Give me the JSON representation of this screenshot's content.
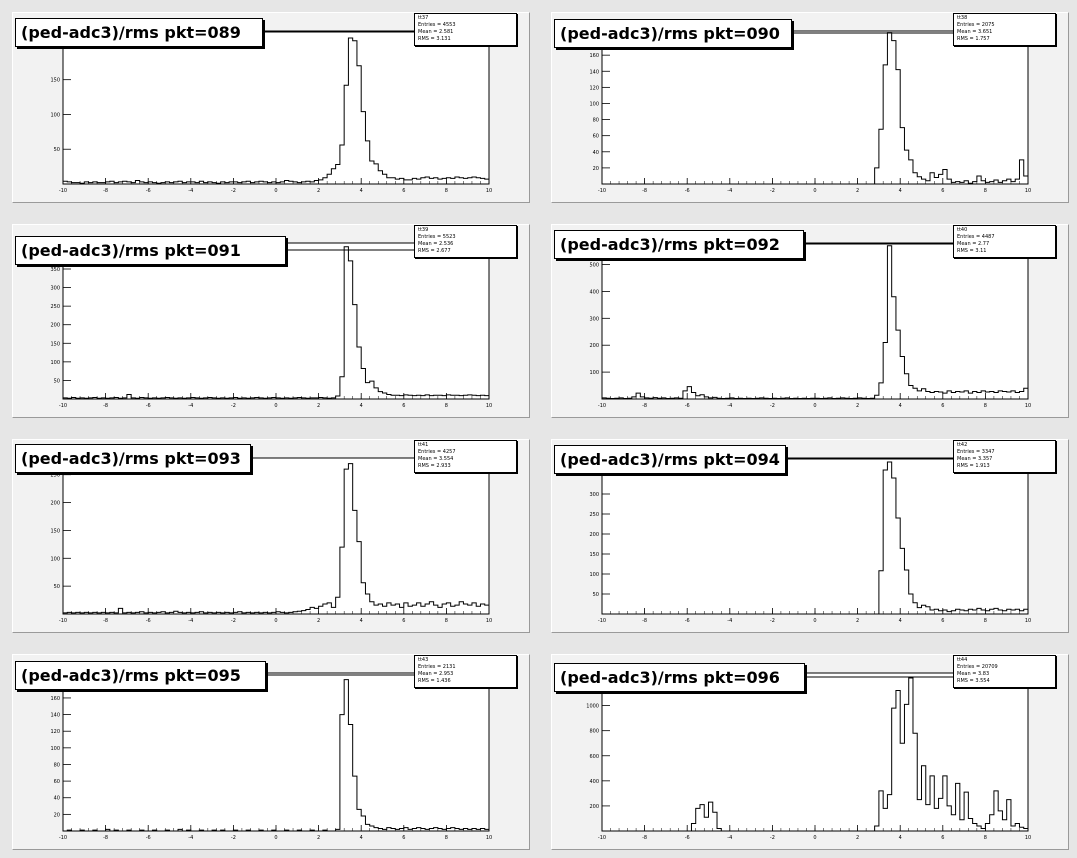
{
  "chart_data": [
    {
      "type": "bar",
      "title": "(ped-adc3)/rms pkt=089",
      "stats": {
        "name": "tt37",
        "entries": "Entries = 4553",
        "mean": "Mean = 2.581",
        "rms": "RMS = 3.131"
      },
      "xlim": [
        -10,
        10
      ],
      "ylim": [
        0,
        220
      ],
      "x_ticks": [
        "-10",
        "-8",
        "-6",
        "-4",
        "-2",
        "0",
        "2",
        "4",
        "6",
        "8",
        "10"
      ],
      "y_ticks": [
        {
          "value": 50,
          "label": "50"
        },
        {
          "value": 100,
          "label": "100"
        },
        {
          "value": 150,
          "label": "150"
        },
        {
          "value": 200,
          "label": "200"
        }
      ],
      "bin_width": 0.2,
      "values": [
        4,
        3,
        2,
        2,
        1,
        3,
        2,
        3,
        2,
        2,
        3,
        4,
        2,
        3,
        4,
        3,
        2,
        5,
        3,
        2,
        3,
        2,
        1,
        2,
        3,
        2,
        3,
        4,
        2,
        3,
        3,
        2,
        4,
        2,
        3,
        2,
        1,
        3,
        2,
        3,
        3,
        2,
        3,
        4,
        2,
        3,
        4,
        3,
        2,
        3,
        2,
        3,
        5,
        4,
        3,
        2,
        3,
        4,
        3,
        5,
        6,
        9,
        14,
        22,
        28,
        56,
        142,
        210,
        206,
        170,
        104,
        62,
        33,
        29,
        19,
        14,
        9,
        9,
        7,
        8,
        6,
        6,
        8,
        7,
        9,
        10,
        8,
        9,
        7,
        8,
        9,
        8,
        10,
        9,
        8,
        9,
        10,
        9,
        8,
        7
      ]
    },
    {
      "type": "bar",
      "title": "(ped-adc3)/rms pkt=090",
      "stats": {
        "name": "tt38",
        "entries": "Entries = 2075",
        "mean": "Mean = 3.651",
        "rms": "RMS = 1.757"
      },
      "xlim": [
        -10,
        10
      ],
      "ylim": [
        0,
        190
      ],
      "x_ticks": [
        "-10",
        "-8",
        "-6",
        "-4",
        "-2",
        "0",
        "2",
        "4",
        "6",
        "8",
        "10"
      ],
      "y_ticks": [
        {
          "value": 20,
          "label": "20"
        },
        {
          "value": 40,
          "label": "40"
        },
        {
          "value": 60,
          "label": "60"
        },
        {
          "value": 80,
          "label": "80"
        },
        {
          "value": 100,
          "label": "100"
        },
        {
          "value": 120,
          "label": "120"
        },
        {
          "value": 140,
          "label": "140"
        },
        {
          "value": 160,
          "label": "160"
        },
        {
          "value": 180,
          "label": "180"
        }
      ],
      "bin_width": 0.2,
      "values": [
        0,
        0,
        0,
        0,
        0,
        0,
        0,
        0,
        0,
        0,
        0,
        0,
        0,
        0,
        0,
        0,
        0,
        0,
        0,
        0,
        0,
        0,
        0,
        0,
        0,
        0,
        0,
        0,
        0,
        0,
        0,
        0,
        0,
        0,
        0,
        0,
        0,
        0,
        0,
        0,
        0,
        0,
        0,
        0,
        0,
        0,
        0,
        0,
        0,
        0,
        0,
        0,
        0,
        0,
        0,
        0,
        0,
        0,
        0,
        0,
        0,
        0,
        0,
        0,
        20,
        68,
        148,
        188,
        178,
        142,
        70,
        42,
        30,
        14,
        9,
        6,
        4,
        14,
        8,
        12,
        18,
        6,
        2,
        3,
        2,
        4,
        1,
        3,
        10,
        4,
        2,
        3,
        5,
        2,
        4,
        6,
        3,
        6,
        30,
        10
      ]
    },
    {
      "type": "bar",
      "title": "(ped-adc3)/rms pkt=091",
      "stats": {
        "name": "tt39",
        "entries": "Entries = 5523",
        "mean": "Mean = 2.536",
        "rms": "RMS = 2.677"
      },
      "xlim": [
        -10,
        10
      ],
      "ylim": [
        0,
        420
      ],
      "x_ticks": [
        "-10",
        "-8",
        "-6",
        "-4",
        "-2",
        "0",
        "2",
        "4",
        "6",
        "8",
        "10"
      ],
      "y_ticks": [
        {
          "value": 50,
          "label": "50"
        },
        {
          "value": 100,
          "label": "100"
        },
        {
          "value": 150,
          "label": "150"
        },
        {
          "value": 200,
          "label": "200"
        },
        {
          "value": 250,
          "label": "250"
        },
        {
          "value": 300,
          "label": "300"
        },
        {
          "value": 350,
          "label": "350"
        }
      ],
      "bin_width": 0.2,
      "values": [
        3,
        2,
        4,
        2,
        3,
        2,
        3,
        4,
        2,
        3,
        2,
        3,
        4,
        2,
        3,
        12,
        3,
        2,
        4,
        3,
        2,
        3,
        2,
        3,
        4,
        3,
        2,
        3,
        2,
        3,
        4,
        3,
        2,
        3,
        4,
        3,
        2,
        3,
        2,
        3,
        4,
        2,
        3,
        2,
        3,
        4,
        3,
        2,
        3,
        4,
        3,
        2,
        3,
        2,
        3,
        4,
        3,
        2,
        3,
        3,
        4,
        3,
        2,
        3,
        8,
        60,
        410,
        372,
        254,
        140,
        82,
        44,
        48,
        30,
        20,
        16,
        12,
        10,
        10,
        9,
        11,
        10,
        9,
        10,
        9,
        11,
        9,
        10,
        10,
        9,
        11,
        10,
        10,
        9,
        10,
        11,
        10,
        9,
        10,
        9
      ]
    },
    {
      "type": "bar",
      "title": "(ped-adc3)/rms pkt=092",
      "stats": {
        "name": "tt40",
        "entries": "Entries = 4487",
        "mean": "Mean = 2.77",
        "rms": "RMS = 3.11"
      },
      "xlim": [
        -10,
        10
      ],
      "ylim": [
        0,
        580
      ],
      "x_ticks": [
        "-10",
        "-8",
        "-6",
        "-4",
        "-2",
        "0",
        "2",
        "4",
        "6",
        "8",
        "10"
      ],
      "y_ticks": [
        {
          "value": 100,
          "label": "100"
        },
        {
          "value": 200,
          "label": "200"
        },
        {
          "value": 300,
          "label": "300"
        },
        {
          "value": 400,
          "label": "400"
        },
        {
          "value": 500,
          "label": "500"
        }
      ],
      "bin_width": 0.2,
      "values": [
        4,
        3,
        2,
        3,
        4,
        2,
        3,
        8,
        22,
        8,
        4,
        3,
        5,
        3,
        4,
        2,
        3,
        4,
        3,
        30,
        46,
        24,
        12,
        16,
        8,
        4,
        6,
        3,
        2,
        3,
        4,
        2,
        3,
        2,
        3,
        2,
        3,
        4,
        3,
        2,
        3,
        2,
        3,
        4,
        2,
        3,
        2,
        3,
        2,
        3,
        3,
        2,
        3,
        4,
        2,
        3,
        4,
        3,
        2,
        3,
        4,
        3,
        2,
        3,
        14,
        60,
        210,
        570,
        380,
        256,
        158,
        94,
        50,
        40,
        30,
        38,
        28,
        24,
        28,
        26,
        22,
        30,
        24,
        28,
        26,
        30,
        22,
        28,
        24,
        30,
        26,
        28,
        24,
        30,
        28,
        26,
        30,
        24,
        28,
        40
      ]
    },
    {
      "type": "bar",
      "title": "(ped-adc3)/rms pkt=093",
      "stats": {
        "name": "tt41",
        "entries": "Entries = 4257",
        "mean": "Mean = 3.554",
        "rms": "RMS = 2.933"
      },
      "xlim": [
        -10,
        10
      ],
      "ylim": [
        0,
        280
      ],
      "x_ticks": [
        "-10",
        "-8",
        "-6",
        "-4",
        "-2",
        "0",
        "2",
        "4",
        "6",
        "8",
        "10"
      ],
      "y_ticks": [
        {
          "value": 50,
          "label": "50"
        },
        {
          "value": 100,
          "label": "100"
        },
        {
          "value": 150,
          "label": "150"
        },
        {
          "value": 200,
          "label": "200"
        },
        {
          "value": 250,
          "label": "250"
        }
      ],
      "bin_width": 0.2,
      "values": [
        2,
        3,
        2,
        3,
        2,
        3,
        2,
        3,
        2,
        3,
        2,
        3,
        2,
        10,
        2,
        3,
        2,
        3,
        4,
        2,
        3,
        2,
        3,
        4,
        2,
        3,
        5,
        3,
        2,
        3,
        2,
        3,
        4,
        2,
        3,
        2,
        3,
        2,
        3,
        2,
        3,
        4,
        2,
        3,
        2,
        3,
        2,
        3,
        2,
        3,
        4,
        3,
        2,
        3,
        4,
        5,
        6,
        8,
        12,
        10,
        14,
        18,
        20,
        12,
        30,
        120,
        260,
        270,
        186,
        130,
        56,
        36,
        22,
        16,
        18,
        14,
        20,
        16,
        18,
        12,
        20,
        14,
        16,
        20,
        14,
        18,
        22,
        16,
        12,
        18,
        20,
        14,
        16,
        22,
        18,
        16,
        20,
        14,
        18,
        16
      ]
    },
    {
      "type": "bar",
      "title": "(ped-adc3)/rms pkt=094",
      "stats": {
        "name": "tt42",
        "entries": "Entries = 3347",
        "mean": "Mean = 3.357",
        "rms": "RMS = 1.913"
      },
      "xlim": [
        -10,
        10
      ],
      "ylim": [
        0,
        390
      ],
      "x_ticks": [
        "-10",
        "-8",
        "-6",
        "-4",
        "-2",
        "0",
        "2",
        "4",
        "6",
        "8",
        "10"
      ],
      "y_ticks": [
        {
          "value": 50,
          "label": "50"
        },
        {
          "value": 100,
          "label": "100"
        },
        {
          "value": 150,
          "label": "150"
        },
        {
          "value": 200,
          "label": "200"
        },
        {
          "value": 250,
          "label": "250"
        },
        {
          "value": 300,
          "label": "300"
        },
        {
          "value": 350,
          "label": "350"
        }
      ],
      "bin_width": 0.2,
      "values": [
        0,
        0,
        0,
        0,
        0,
        0,
        0,
        0,
        0,
        0,
        0,
        0,
        0,
        0,
        0,
        0,
        0,
        0,
        0,
        0,
        0,
        0,
        0,
        0,
        0,
        0,
        0,
        0,
        0,
        0,
        0,
        0,
        0,
        0,
        0,
        0,
        0,
        0,
        0,
        0,
        0,
        0,
        0,
        0,
        0,
        0,
        0,
        0,
        0,
        0,
        0,
        0,
        0,
        0,
        0,
        0,
        0,
        0,
        0,
        0,
        0,
        0,
        0,
        0,
        0,
        108,
        360,
        380,
        340,
        240,
        164,
        110,
        50,
        28,
        16,
        22,
        18,
        10,
        12,
        8,
        10,
        6,
        8,
        12,
        10,
        8,
        12,
        10,
        14,
        10,
        8,
        12,
        14,
        10,
        8,
        12,
        10,
        12,
        8,
        12
      ]
    },
    {
      "type": "bar",
      "title": "(ped-adc3)/rms pkt=095",
      "stats": {
        "name": "tt43",
        "entries": "Entries = 2131",
        "mean": "Mean = 2.953",
        "rms": "RMS = 1.436"
      },
      "xlim": [
        -10,
        10
      ],
      "ylim": [
        0,
        190
      ],
      "x_ticks": [
        "-10",
        "-8",
        "-6",
        "-4",
        "-2",
        "0",
        "2",
        "4",
        "6",
        "8",
        "10"
      ],
      "y_ticks": [
        {
          "value": 20,
          "label": "20"
        },
        {
          "value": 40,
          "label": "40"
        },
        {
          "value": 60,
          "label": "60"
        },
        {
          "value": 80,
          "label": "80"
        },
        {
          "value": 100,
          "label": "100"
        },
        {
          "value": 120,
          "label": "120"
        },
        {
          "value": 140,
          "label": "140"
        },
        {
          "value": 160,
          "label": "160"
        },
        {
          "value": 180,
          "label": "180"
        }
      ],
      "bin_width": 0.2,
      "values": [
        0,
        1,
        0,
        0,
        1,
        0,
        0,
        1,
        0,
        0,
        2,
        0,
        1,
        0,
        0,
        1,
        0,
        0,
        1,
        0,
        0,
        1,
        0,
        0,
        1,
        0,
        0,
        2,
        0,
        1,
        0,
        0,
        1,
        0,
        0,
        1,
        0,
        1,
        0,
        0,
        1,
        0,
        0,
        1,
        0,
        0,
        1,
        0,
        0,
        1,
        0,
        0,
        1,
        0,
        0,
        1,
        0,
        0,
        1,
        0,
        0,
        1,
        0,
        0,
        2,
        140,
        182,
        128,
        66,
        26,
        18,
        8,
        6,
        4,
        3,
        2,
        4,
        3,
        2,
        3,
        4,
        2,
        3,
        4,
        3,
        2,
        3,
        4,
        3,
        2,
        3,
        4,
        3,
        2,
        3,
        2,
        3,
        2,
        3,
        2
      ]
    },
    {
      "type": "bar",
      "title": "(ped-adc3)/rms pkt=096",
      "stats": {
        "name": "tt44",
        "entries": "Entries = 20709",
        "mean": "Mean = 3.83",
        "rms": "RMS = 3.554"
      },
      "xlim": [
        -10,
        10
      ],
      "ylim": [
        0,
        1260
      ],
      "x_ticks": [
        "-10",
        "-8",
        "-6",
        "-4",
        "-2",
        "0",
        "2",
        "4",
        "6",
        "8",
        "10"
      ],
      "y_ticks": [
        {
          "value": 200,
          "label": "200"
        },
        {
          "value": 400,
          "label": "400"
        },
        {
          "value": 600,
          "label": "600"
        },
        {
          "value": 800,
          "label": "800"
        },
        {
          "value": 1000,
          "label": "1000"
        }
      ],
      "bin_width": 0.2,
      "values": [
        0,
        0,
        0,
        0,
        0,
        0,
        0,
        0,
        0,
        0,
        0,
        0,
        0,
        0,
        0,
        0,
        0,
        0,
        0,
        0,
        0,
        60,
        180,
        210,
        110,
        230,
        150,
        20,
        0,
        0,
        0,
        0,
        0,
        0,
        0,
        0,
        0,
        0,
        0,
        0,
        0,
        0,
        0,
        0,
        0,
        0,
        0,
        0,
        0,
        0,
        0,
        0,
        0,
        0,
        0,
        0,
        0,
        0,
        0,
        0,
        0,
        0,
        0,
        0,
        40,
        320,
        180,
        290,
        980,
        1120,
        700,
        1010,
        1220,
        780,
        250,
        520,
        210,
        440,
        180,
        260,
        440,
        200,
        130,
        380,
        90,
        310,
        100,
        60,
        40,
        20,
        60,
        130,
        320,
        160,
        90,
        250,
        40,
        60,
        30,
        20
      ]
    }
  ]
}
